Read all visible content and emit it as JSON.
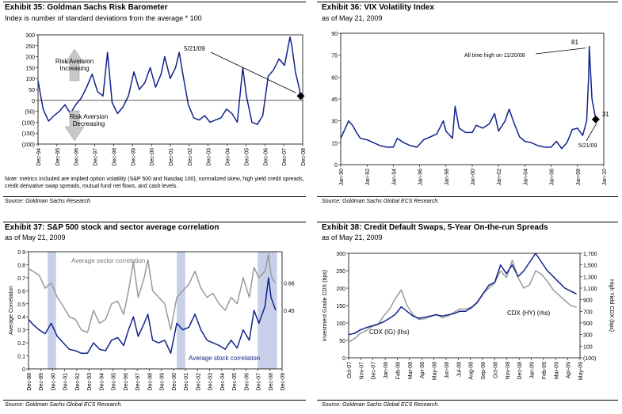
{
  "panels": [
    {
      "title": "Exhibit 35:   Goldman Sachs Risk Barometer",
      "subtitle": "Index is number of standard deviations from the average * 100",
      "note": "Note: metrics included are implied option volatility (S&P 500 and Nasdaq 100), normalized skew, high yield credit spreads, credit derivative swap spreads, mutual fund net flows, and cash levels.",
      "source": "Source: Goldman Sachs Research."
    },
    {
      "title": "Exhibit 36:  VIX Volatility Index",
      "subtitle": "as of May 21, 2009",
      "note": "",
      "source": "Source: Goldman Sachs Global ECS Research."
    },
    {
      "title": "Exhibit 37:   S&P 500 stock and sector average correlation",
      "subtitle": "as of May 21, 2009",
      "note": "",
      "source": "Source: Goldman Sachs Global ECS Research."
    },
    {
      "title": "Exhibit 38:  Credit Default Swaps, 5-Year On-the-run Spreads",
      "subtitle": "as of May 21, 2009",
      "note": "",
      "source": "Source: Goldman Sachs Global ECS Research."
    }
  ],
  "colors": {
    "navy": "#10238c",
    "gray": "#9a9a9a",
    "shade": "#c7d0e8",
    "plot_bg": "#ffffff"
  },
  "chart_data": [
    {
      "type": "line",
      "title": "Goldman Sachs Risk Barometer",
      "ylim": [
        -200,
        300
      ],
      "yticks": [
        "300",
        "250",
        "200",
        "150",
        "100",
        "50",
        "0",
        "(50)",
        "(100)",
        "(150)",
        "(200)"
      ],
      "xticks": [
        "Dec-94",
        "Dec-95",
        "Dec-96",
        "Dec-97",
        "Dec-98",
        "Dec-99",
        "Dec-00",
        "Dec-01",
        "Dec-02",
        "Dec-03",
        "Dec-04",
        "Dec-05",
        "Dec-06",
        "Dec-07",
        "Dec-08"
      ],
      "xrange": [
        1994.92,
        2009.5
      ],
      "annotations": {
        "top_label": "Risk Aversion\nIncreasing",
        "bottom_label": "Risk Aversion\nDecreasing",
        "date_label": "5/21/09"
      },
      "series": [
        {
          "color": "navy",
          "x": [
            1994.92,
            1995.2,
            1995.5,
            1995.8,
            1996.1,
            1996.4,
            1996.7,
            1997.0,
            1997.3,
            1997.6,
            1997.9,
            1998.2,
            1998.5,
            1998.75,
            1999.0,
            1999.3,
            1999.6,
            1999.9,
            2000.2,
            2000.5,
            2000.8,
            2001.1,
            2001.4,
            2001.7,
            2001.9,
            2002.2,
            2002.5,
            2002.7,
            2002.9,
            2003.2,
            2003.5,
            2003.8,
            2004.1,
            2004.4,
            2004.7,
            2005.0,
            2005.3,
            2005.6,
            2005.9,
            2006.2,
            2006.4,
            2006.7,
            2007.0,
            2007.3,
            2007.6,
            2007.9,
            2008.2,
            2008.5,
            2008.8,
            2008.9,
            2009.1,
            2009.3,
            2009.39
          ],
          "values": [
            90,
            -40,
            -95,
            -70,
            -50,
            -20,
            -60,
            -20,
            10,
            60,
            120,
            40,
            20,
            220,
            -10,
            -60,
            -30,
            20,
            130,
            50,
            80,
            150,
            60,
            120,
            200,
            100,
            150,
            220,
            120,
            -20,
            -80,
            -90,
            -70,
            -100,
            -90,
            -80,
            -40,
            -60,
            -100,
            150,
            20,
            -100,
            -110,
            -70,
            110,
            140,
            190,
            160,
            290,
            250,
            130,
            60,
            20
          ]
        }
      ]
    },
    {
      "type": "line",
      "title": "VIX Volatility Index",
      "ylim": [
        0,
        90
      ],
      "yticks": [
        "90",
        "75",
        "60",
        "45",
        "30",
        "15",
        "0"
      ],
      "xticks": [
        "Jan-90",
        "Jan-92",
        "Jan-94",
        "Jan-96",
        "Jan-98",
        "Jan-00",
        "Jan-02",
        "Jan-04",
        "Jan-06",
        "Jan-08",
        "Jan-10"
      ],
      "xrange": [
        1990.0,
        2010.0
      ],
      "annotations": {
        "high_value": "81",
        "high_label": "All time high on 11/20/08",
        "current_value": "31",
        "current_label": "5/21/09"
      },
      "series": [
        {
          "color": "navy",
          "x": [
            1990.0,
            1990.6,
            1990.9,
            1991.2,
            1991.5,
            1992.0,
            1992.5,
            1993.0,
            1993.5,
            1994.0,
            1994.3,
            1994.8,
            1995.3,
            1995.8,
            1996.3,
            1996.8,
            1997.3,
            1997.8,
            1998.0,
            1998.5,
            1998.7,
            1999.0,
            1999.5,
            2000.0,
            2000.3,
            2000.8,
            2001.3,
            2001.7,
            2002.0,
            2002.5,
            2002.8,
            2003.2,
            2003.6,
            2004.0,
            2004.5,
            2005.0,
            2005.5,
            2006.0,
            2006.4,
            2006.8,
            2007.2,
            2007.6,
            2008.0,
            2008.4,
            2008.7,
            2008.85,
            2008.9,
            2009.1,
            2009.39
          ],
          "values": [
            18,
            30,
            27,
            22,
            18,
            17,
            15,
            13,
            12,
            12,
            18,
            15,
            13,
            12,
            17,
            19,
            21,
            30,
            23,
            18,
            40,
            25,
            22,
            22,
            27,
            25,
            28,
            35,
            23,
            30,
            38,
            28,
            19,
            16,
            15,
            13,
            12,
            12,
            16,
            11,
            15,
            24,
            25,
            20,
            30,
            60,
            81,
            45,
            31
          ]
        }
      ]
    },
    {
      "type": "line",
      "title": "S&P 500 stock and sector average correlation",
      "ylabel": "Average Correlation",
      "ylim": [
        0,
        0.9
      ],
      "yticks": [
        "0.9",
        "0.8",
        "0.7",
        "0.6",
        "0.5",
        "0.4",
        "0.3",
        "0.2",
        "0.1",
        "0"
      ],
      "xticks": [
        "Dec-88",
        "Dec-89",
        "Dec-90",
        "Dec-91",
        "Dec-92",
        "Dec-93",
        "Dec-94",
        "Dec-95",
        "Dec-96",
        "Dec-97",
        "Dec-98",
        "Dec-99",
        "Dec-00",
        "Dec-01",
        "Dec-02",
        "Dec-03",
        "Dec-04",
        "Dec-05",
        "Dec-06",
        "Dec-07",
        "Dec-08",
        "Dec-09"
      ],
      "xrange": [
        1988.92,
        2009.92
      ],
      "shaded_periods": [
        [
          1990.5,
          1991.2
        ],
        [
          2001.2,
          2001.9
        ],
        [
          2007.9,
          2009.5
        ]
      ],
      "annotations": {
        "sector_label": "Average sector correlation",
        "stock_label": "Average stock correlation",
        "sector_end": "0.66",
        "stock_end": "0.45"
      },
      "series": [
        {
          "name": "Average sector correlation",
          "color": "gray",
          "x": [
            1988.92,
            1989.3,
            1989.8,
            1990.3,
            1990.8,
            1991.3,
            1991.8,
            1992.3,
            1992.8,
            1993.3,
            1993.8,
            1994.3,
            1994.8,
            1995.3,
            1995.8,
            1996.3,
            1996.8,
            1997.2,
            1997.6,
            1998.0,
            1998.5,
            1998.8,
            1999.2,
            1999.7,
            2000.2,
            2000.7,
            2001.2,
            2001.7,
            2002.2,
            2002.7,
            2003.2,
            2003.7,
            2004.2,
            2004.7,
            2005.2,
            2005.7,
            2006.2,
            2006.7,
            2007.2,
            2007.6,
            2008.0,
            2008.5,
            2008.8,
            2009.0,
            2009.2,
            2009.39
          ],
          "values": [
            0.77,
            0.75,
            0.72,
            0.62,
            0.66,
            0.55,
            0.48,
            0.4,
            0.38,
            0.3,
            0.28,
            0.45,
            0.35,
            0.38,
            0.5,
            0.52,
            0.42,
            0.6,
            0.82,
            0.55,
            0.7,
            0.84,
            0.6,
            0.55,
            0.5,
            0.3,
            0.55,
            0.6,
            0.65,
            0.75,
            0.62,
            0.55,
            0.58,
            0.5,
            0.45,
            0.55,
            0.5,
            0.7,
            0.55,
            0.78,
            0.7,
            0.75,
            0.88,
            0.72,
            0.68,
            0.66
          ]
        },
        {
          "name": "Average stock correlation",
          "color": "navy",
          "x": [
            1988.92,
            1989.3,
            1989.8,
            1990.3,
            1990.8,
            1991.3,
            1991.8,
            1992.3,
            1992.8,
            1993.3,
            1993.8,
            1994.3,
            1994.8,
            1995.3,
            1995.8,
            1996.3,
            1996.8,
            1997.2,
            1997.6,
            1998.0,
            1998.5,
            1998.8,
            1999.2,
            1999.7,
            2000.2,
            2000.7,
            2001.2,
            2001.7,
            2002.2,
            2002.7,
            2003.2,
            2003.7,
            2004.2,
            2004.7,
            2005.2,
            2005.7,
            2006.2,
            2006.7,
            2007.2,
            2007.6,
            2008.0,
            2008.5,
            2008.8,
            2009.0,
            2009.2,
            2009.39
          ],
          "values": [
            0.38,
            0.34,
            0.3,
            0.27,
            0.35,
            0.25,
            0.2,
            0.15,
            0.14,
            0.12,
            0.12,
            0.2,
            0.15,
            0.14,
            0.22,
            0.24,
            0.18,
            0.3,
            0.4,
            0.25,
            0.35,
            0.42,
            0.22,
            0.2,
            0.22,
            0.12,
            0.35,
            0.3,
            0.32,
            0.42,
            0.3,
            0.22,
            0.2,
            0.18,
            0.15,
            0.22,
            0.16,
            0.3,
            0.22,
            0.45,
            0.35,
            0.48,
            0.7,
            0.55,
            0.5,
            0.45
          ]
        }
      ]
    },
    {
      "type": "line",
      "title": "Credit Default Swaps, 5-Year On-the-run Spreads",
      "ylabel": "Investment Grade CDX (bps)",
      "y2label": "High Yield CDX (bps)",
      "ylim": [
        0,
        300
      ],
      "y2lim": [
        -100,
        1700
      ],
      "yticks": [
        "300",
        "250",
        "200",
        "150",
        "100",
        "50",
        "0"
      ],
      "y2ticks": [
        "1,700",
        "1,500",
        "1,300",
        "1,100",
        "900",
        "700",
        "500",
        "300",
        "100",
        "(100)"
      ],
      "xticks": [
        "Oct-07",
        "Nov-07",
        "Dec-07",
        "Jan-08",
        "Feb-08",
        "Mar-08",
        "Apr-08",
        "May-08",
        "Jun-08",
        "Jul-08",
        "Aug-08",
        "Sep-08",
        "Oct-08",
        "Nov-08",
        "Dec-08",
        "Jan-09",
        "Feb-09",
        "Mar-09",
        "Apr-09",
        "May-09"
      ],
      "xrange": [
        0,
        19.8
      ],
      "annotations": {
        "hy_label": "CDX (HY) (rhs)",
        "ig_label": "CDX (IG) (lhs)"
      },
      "series": [
        {
          "name": "CDX (IG) (lhs)",
          "color": "gray",
          "x": [
            0,
            0.5,
            1,
            1.5,
            2,
            2.5,
            3,
            3.5,
            4,
            4.5,
            5,
            5.5,
            6,
            6.5,
            7,
            7.5,
            8,
            8.5,
            9,
            9.5,
            10,
            10.5,
            11,
            11.5,
            12,
            12.5,
            13,
            13.5,
            14,
            14.5,
            15,
            15.5,
            16,
            16.5,
            17,
            17.5,
            18,
            18.5,
            19,
            19.5
          ],
          "values": [
            45,
            55,
            70,
            78,
            90,
            95,
            120,
            140,
            170,
            195,
            150,
            125,
            110,
            112,
            118,
            125,
            115,
            120,
            130,
            140,
            140,
            145,
            160,
            185,
            200,
            215,
            250,
            230,
            280,
            230,
            200,
            210,
            250,
            240,
            220,
            195,
            180,
            165,
            150,
            145
          ]
        },
        {
          "name": "CDX (HY) (rhs)",
          "color": "navy",
          "axis": "right",
          "x": [
            0,
            0.5,
            1,
            1.5,
            2,
            2.5,
            3,
            3.5,
            4,
            4.5,
            5,
            5.5,
            6,
            6.5,
            7,
            7.5,
            8,
            8.5,
            9,
            9.5,
            10,
            10.5,
            11,
            11.5,
            12,
            12.5,
            13,
            13.5,
            14,
            14.5,
            15,
            15.5,
            16,
            16.5,
            17,
            17.5,
            18,
            18.5,
            19,
            19.5
          ],
          "values": [
            300,
            320,
            380,
            420,
            450,
            480,
            520,
            580,
            650,
            780,
            700,
            620,
            580,
            600,
            620,
            640,
            620,
            640,
            660,
            700,
            700,
            760,
            850,
            1000,
            1150,
            1200,
            1500,
            1350,
            1500,
            1300,
            1400,
            1550,
            1700,
            1550,
            1400,
            1300,
            1200,
            1100,
            1050,
            1000
          ]
        }
      ]
    }
  ]
}
